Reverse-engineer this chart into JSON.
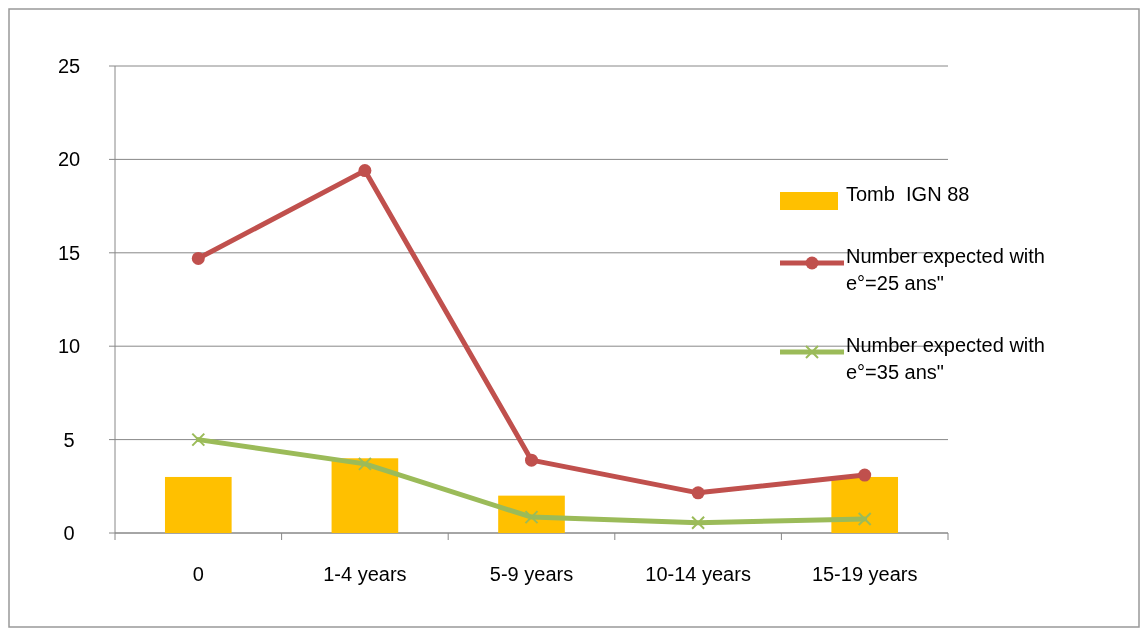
{
  "chart_data": {
    "type": "bar",
    "categories": [
      "0",
      "1-4 years",
      "5-9 years",
      "10-14 years",
      "15-19 years"
    ],
    "series": [
      {
        "name": "Tomb  IGN 88",
        "color": "#ffc000",
        "values": [
          3,
          4,
          2,
          null,
          3
        ]
      },
      {
        "name": "Number expected with e°=25 ans\"",
        "type": "line",
        "color": "#c0504d",
        "marker": "circle",
        "values": [
          14.7,
          19.4,
          3.9,
          2.15,
          3.1
        ]
      },
      {
        "name": "Number expected with e°=35 ans\"",
        "type": "line",
        "color": "#9bbb59",
        "marker": "cross",
        "values": [
          5,
          3.7,
          0.85,
          0.55,
          0.75
        ]
      }
    ],
    "ylim": [
      0,
      25
    ],
    "yticks": [
      0,
      5,
      10,
      15,
      20,
      25
    ],
    "grid": "y",
    "legend": "right"
  }
}
